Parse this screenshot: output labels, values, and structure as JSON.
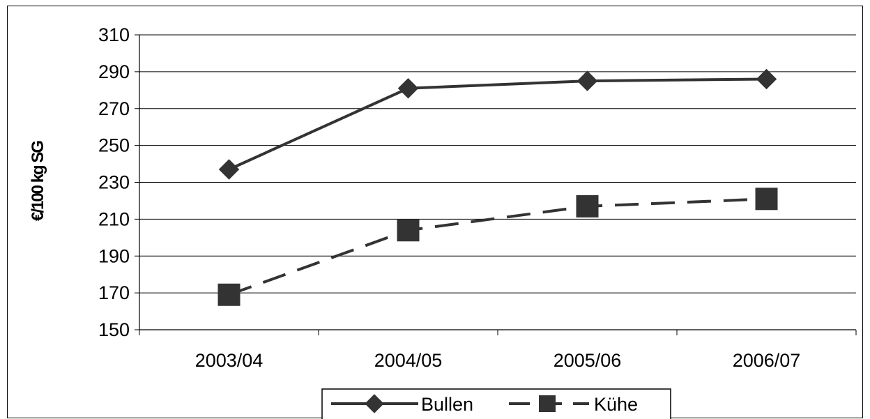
{
  "chart_data": {
    "type": "line",
    "categories": [
      "2003/04",
      "2004/05",
      "2005/06",
      "2006/07"
    ],
    "series": [
      {
        "name": "Bullen",
        "values": [
          237,
          281,
          285,
          286
        ],
        "line_style": "solid",
        "marker": "diamond",
        "color": "#333333"
      },
      {
        "name": "Kühe",
        "values": [
          169,
          204,
          217,
          221
        ],
        "line_style": "dashed",
        "marker": "square",
        "color": "#333333"
      }
    ],
    "title": "",
    "xlabel": "",
    "ylabel": "€/100 kg SG",
    "ylim": [
      150,
      310
    ],
    "yticks": [
      150,
      170,
      190,
      210,
      230,
      250,
      270,
      290,
      310
    ],
    "grid": true,
    "legend_position": "bottom"
  }
}
